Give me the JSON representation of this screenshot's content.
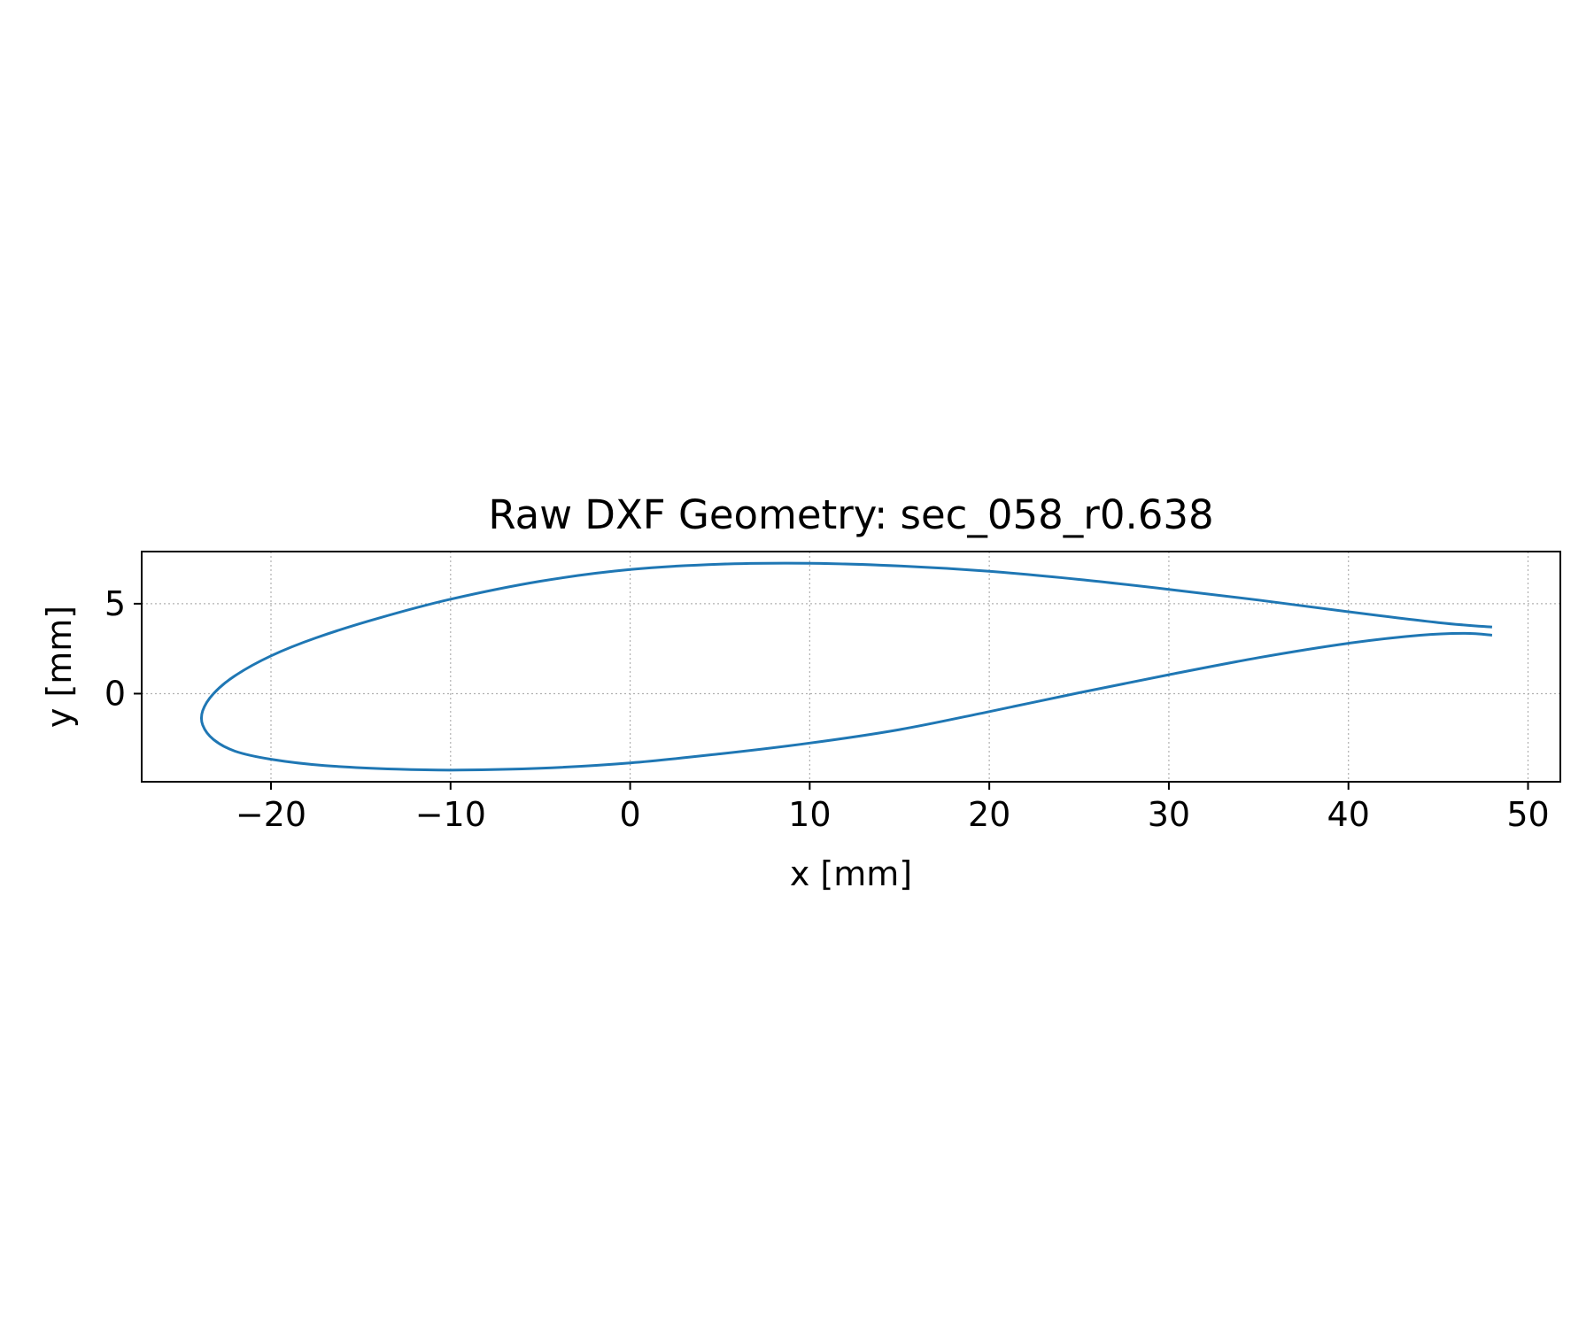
{
  "chart_data": {
    "type": "line",
    "title": "Raw DXF Geometry: sec_058_r0.638",
    "xlabel": "x [mm]",
    "ylabel": "y [mm]",
    "xlim": [
      -27.2,
      51.8
    ],
    "ylim": [
      -4.9,
      7.9
    ],
    "xticks": [
      -20,
      -10,
      0,
      10,
      20,
      30,
      40,
      50
    ],
    "xtick_labels": [
      "−20",
      "−10",
      "0",
      "10",
      "20",
      "30",
      "40",
      "50"
    ],
    "yticks": [
      0,
      5
    ],
    "ytick_labels": [
      "0",
      "5"
    ],
    "grid": true,
    "line_color": "#1f77b4",
    "series": [
      {
        "x": [
          48.0,
          45.0,
          40.0,
          35.0,
          30.0,
          25.0,
          20.0,
          15.0,
          10.0,
          5.0,
          0.0,
          -5.0,
          -10.0,
          -14.0,
          -17.5,
          -20.0,
          -22.0,
          -23.2,
          -23.8,
          -23.8,
          -23.2,
          -22.0,
          -20.0,
          -17.0,
          -13.0,
          -9.5,
          -5.0,
          0.0,
          5.0,
          10.0,
          15.0,
          20.0,
          25.0,
          30.0,
          35.0,
          40.0,
          44.0,
          46.5,
          48.0
        ],
        "y": [
          3.7,
          3.95,
          4.55,
          5.2,
          5.8,
          6.35,
          6.8,
          7.1,
          7.25,
          7.2,
          6.9,
          6.25,
          5.25,
          4.2,
          3.1,
          2.1,
          1.0,
          0.0,
          -0.95,
          -1.75,
          -2.55,
          -3.2,
          -3.65,
          -4.0,
          -4.2,
          -4.25,
          -4.15,
          -3.85,
          -3.35,
          -2.75,
          -2.0,
          -1.0,
          0.05,
          1.05,
          2.0,
          2.8,
          3.25,
          3.35,
          3.25
        ]
      }
    ]
  }
}
